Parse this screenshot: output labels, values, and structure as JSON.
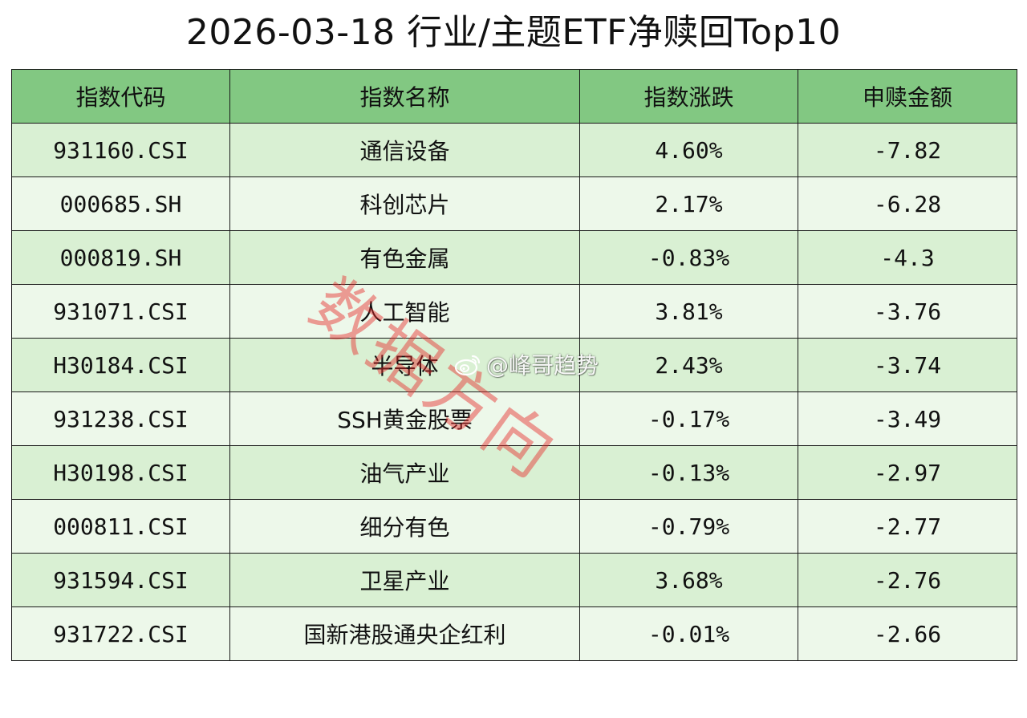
{
  "title": "2026-03-18 行业/主题ETF净赎回Top10",
  "table": {
    "headers": [
      "指数代码",
      "指数名称",
      "指数涨跌",
      "申赎金额"
    ],
    "rows": [
      {
        "code": "931160.CSI",
        "name": "通信设备",
        "change": "4.60%",
        "amount": "-7.82"
      },
      {
        "code": "000685.SH",
        "name": "科创芯片",
        "change": "2.17%",
        "amount": "-6.28"
      },
      {
        "code": "000819.SH",
        "name": "有色金属",
        "change": "-0.83%",
        "amount": "-4.3"
      },
      {
        "code": "931071.CSI",
        "name": "人工智能",
        "change": "3.81%",
        "amount": "-3.76"
      },
      {
        "code": "H30184.CSI",
        "name": "半导体",
        "change": "2.43%",
        "amount": "-3.74"
      },
      {
        "code": "931238.CSI",
        "name": "SSH黄金股票",
        "change": "-0.17%",
        "amount": "-3.49"
      },
      {
        "code": "H30198.CSI",
        "name": "油气产业",
        "change": "-0.13%",
        "amount": "-2.97"
      },
      {
        "code": "000811.CSI",
        "name": "细分有色",
        "change": "-0.79%",
        "amount": "-2.77"
      },
      {
        "code": "931594.CSI",
        "name": "卫星产业",
        "change": "3.68%",
        "amount": "-2.76"
      },
      {
        "code": "931722.CSI",
        "name": "国新港股通央企红利",
        "change": "-0.01%",
        "amount": "-2.66"
      }
    ]
  },
  "watermark": {
    "text": "数据方向",
    "weibo_handle": "@峰哥趋势",
    "icon": "weibo-icon"
  },
  "colors": {
    "header_bg": "#82c882",
    "row_dark": "#d9f0d3",
    "row_light": "#edf8ea",
    "watermark": "#e62828"
  }
}
